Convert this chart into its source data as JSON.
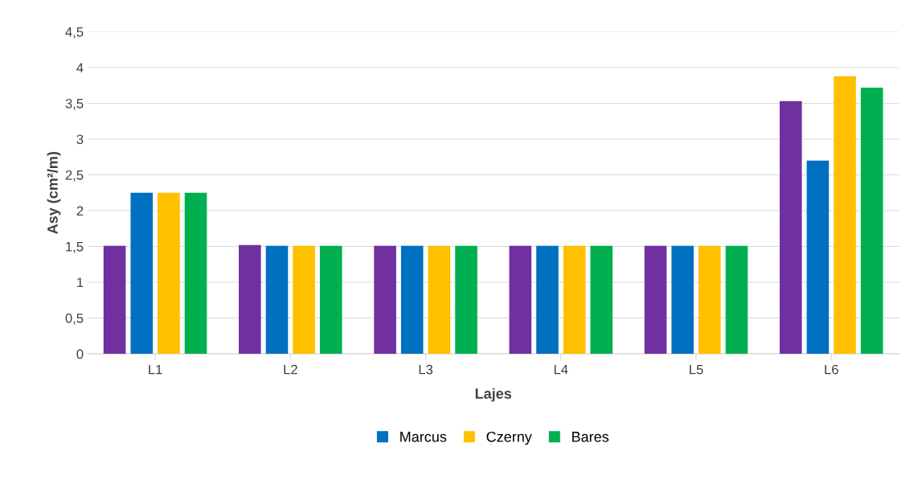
{
  "chart_data": {
    "type": "bar",
    "xlabel": "Lajes",
    "ylabel": "Asy (cm²/m)",
    "categories": [
      "L1",
      "L2",
      "L3",
      "L4",
      "L5",
      "L6"
    ],
    "series": [
      {
        "color": "#7030a0",
        "values": [
          1.51,
          1.52,
          1.51,
          1.51,
          1.51,
          3.53
        ]
      },
      {
        "name": "Marcus",
        "color": "#0070c0",
        "values": [
          2.25,
          1.51,
          1.51,
          1.51,
          1.51,
          2.7
        ]
      },
      {
        "name": "Czerny",
        "color": "#ffc000",
        "values": [
          2.25,
          1.51,
          1.51,
          1.51,
          1.51,
          3.88
        ]
      },
      {
        "name": "Bares",
        "color": "#00b050",
        "values": [
          2.25,
          1.51,
          1.51,
          1.51,
          1.51,
          3.72
        ]
      }
    ],
    "ylim": [
      0,
      4.5
    ],
    "yticks": [
      0,
      {
        "value": 0.5,
        "label": "0,5"
      },
      1,
      {
        "value": 1.5,
        "label": "1,5"
      },
      2,
      {
        "value": 2.5,
        "label": "2,5"
      },
      3,
      {
        "value": 3.5,
        "label": "3,5"
      },
      4,
      {
        "value": 4.5,
        "label": "4,5"
      }
    ],
    "grid": "y",
    "legend": "bottom"
  }
}
